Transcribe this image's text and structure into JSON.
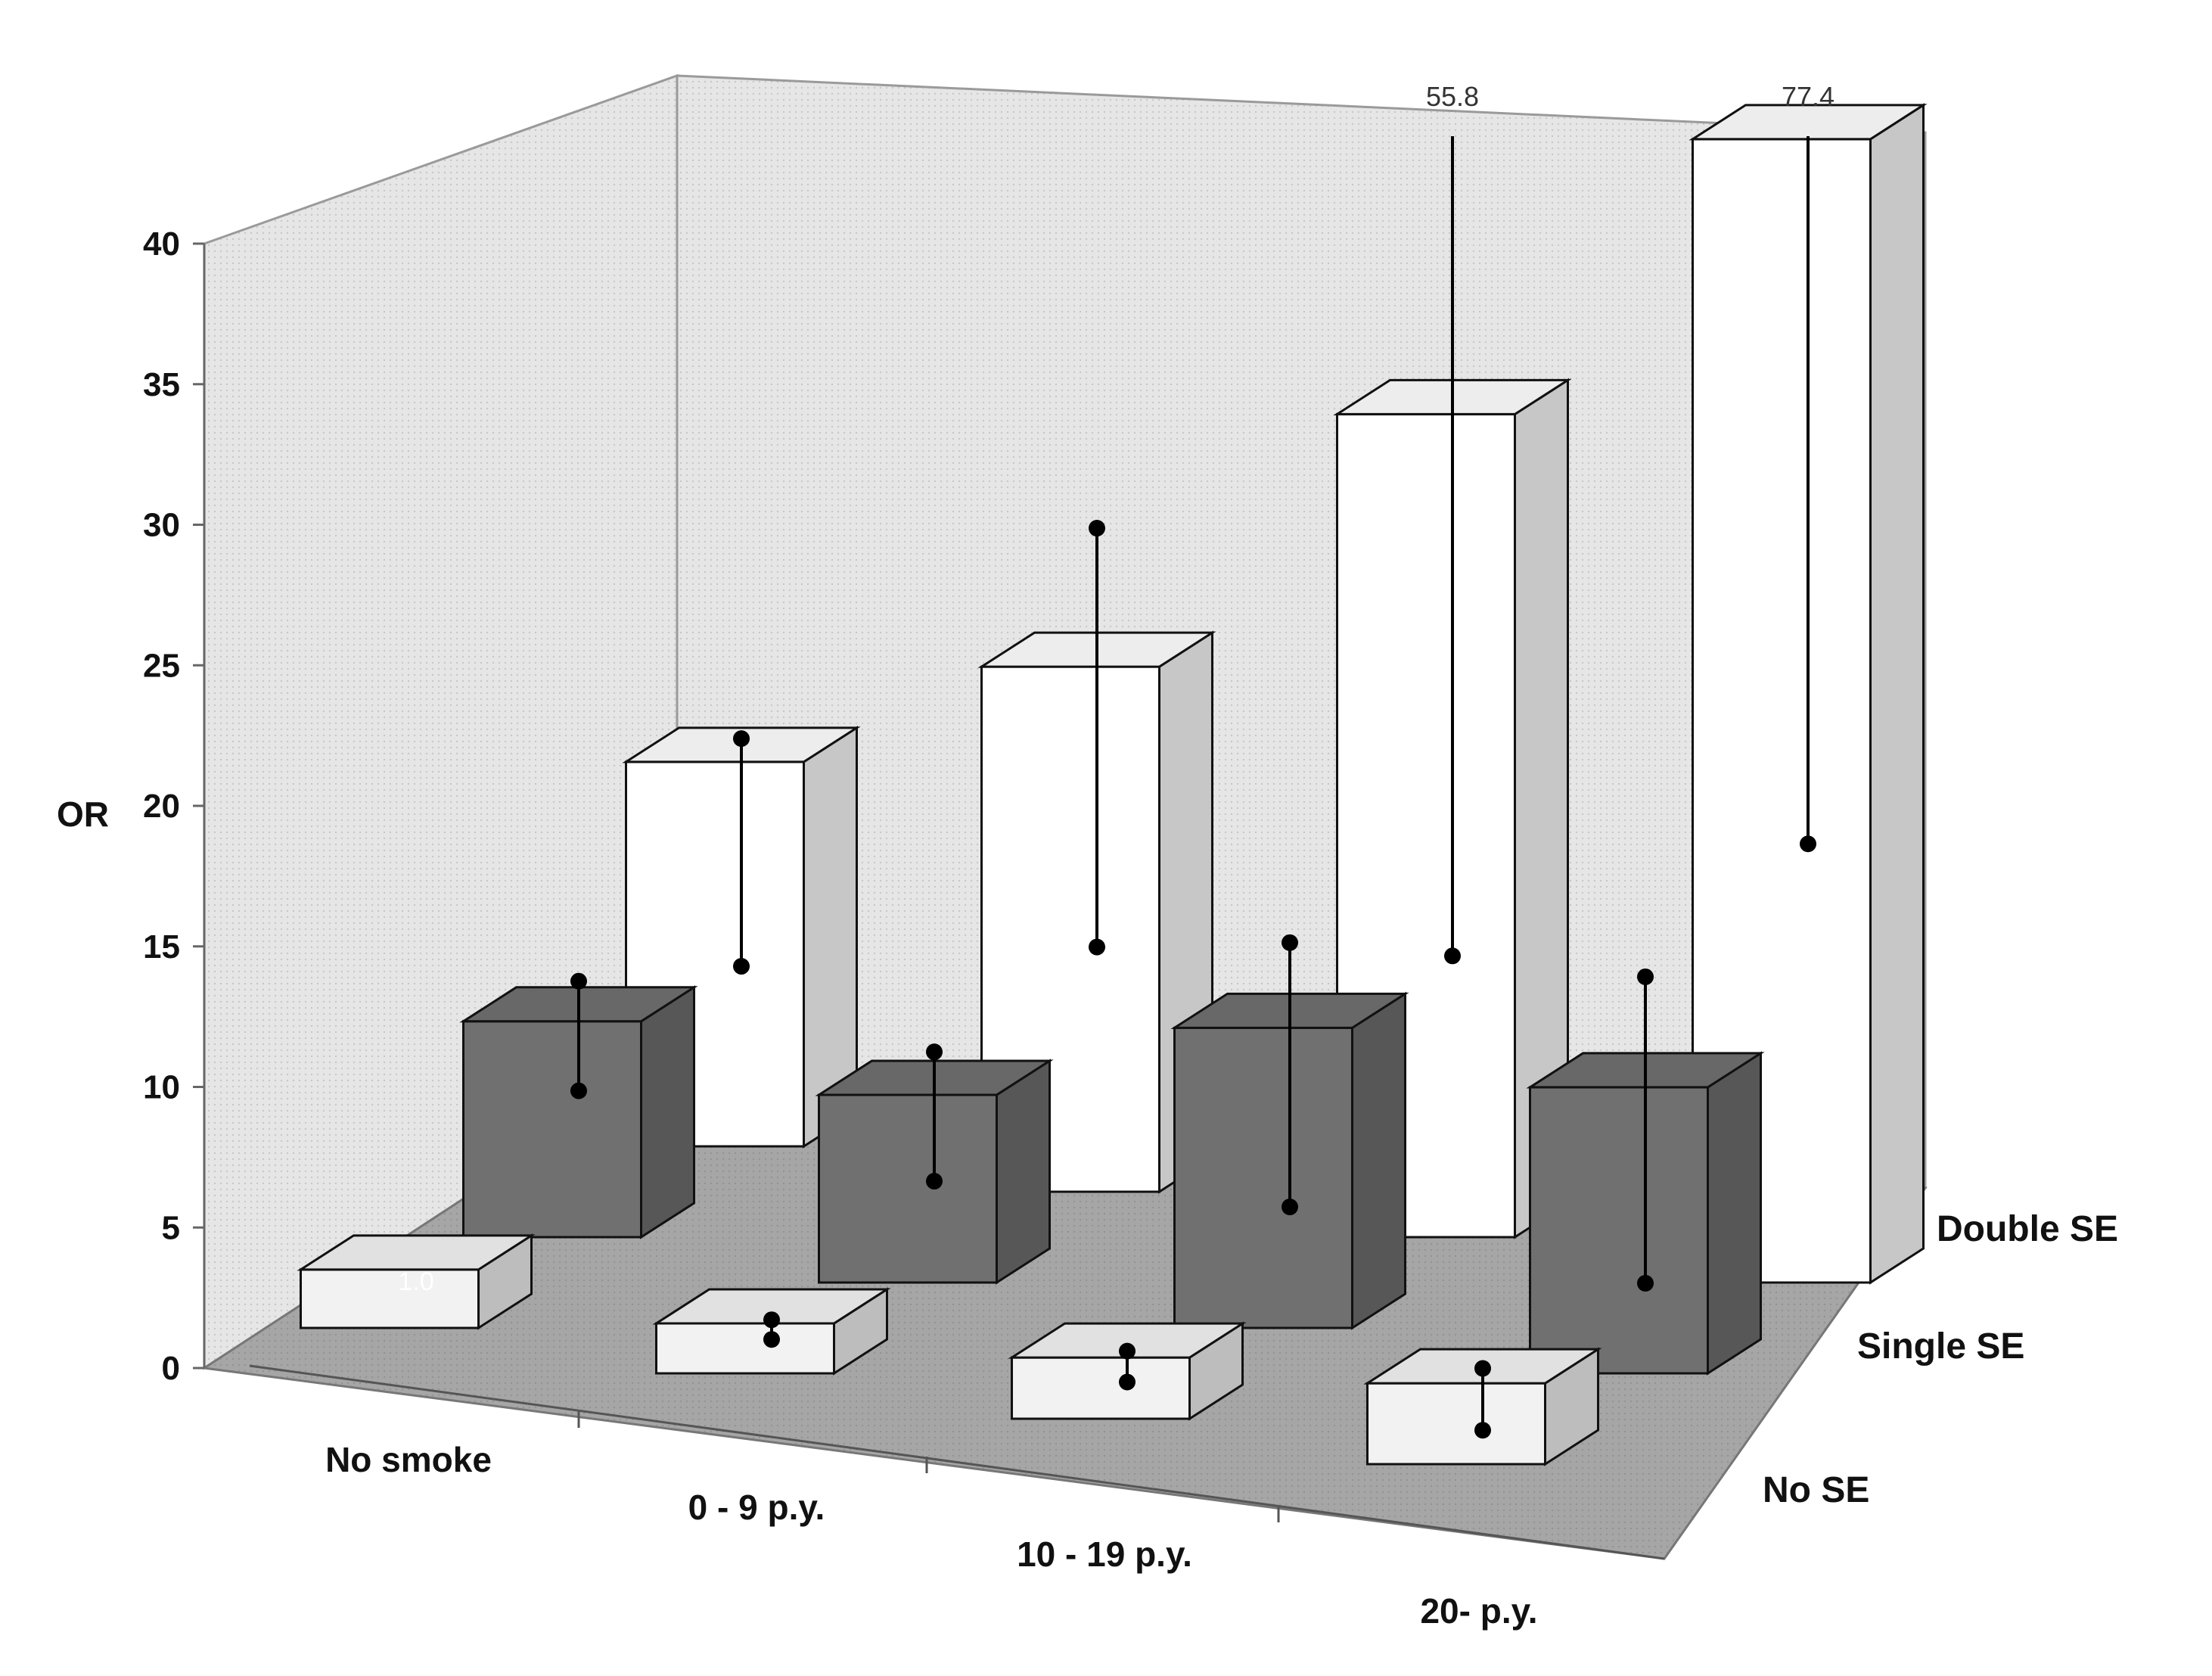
{
  "chart_data": {
    "type": "bar",
    "title": "",
    "ylabel": "OR",
    "ylim": [
      0,
      40
    ],
    "yticks": [
      "0",
      "5",
      "10",
      "15",
      "20",
      "25",
      "30",
      "35",
      "40"
    ],
    "categories": [
      "No smoke",
      "0 - 9 p.y.",
      "10 - 19 p.y.",
      "20- p.y."
    ],
    "series": [
      {
        "name": "No SE",
        "color": "#f2f2f2",
        "values": [
          1.0,
          0.7,
          1.1,
          1.8
        ],
        "ci_low": [
          null,
          0.6,
          0.7,
          0.6
        ],
        "ci_high": [
          null,
          1.3,
          1.8,
          2.8
        ]
      },
      {
        "name": "Single SE",
        "color": "#707070",
        "values": [
          6.6,
          5.6,
          9.6,
          9.1
        ],
        "ci_low": [
          4.6,
          3.0,
          3.7,
          2.6
        ],
        "ci_high": [
          8.5,
          7.6,
          13.1,
          13.5
        ]
      },
      {
        "name": "Double SE",
        "color": "#ffffff",
        "values": [
          12.6,
          17.6,
          28.2,
          39.6
        ],
        "ci_low": [
          5.8,
          8.1,
          9.4,
          15.0
        ],
        "ci_high": [
          13.9,
          23.0,
          55.8,
          77.4
        ]
      }
    ],
    "annotations": [
      {
        "series": "Double SE",
        "category": "10 - 19 p.y.",
        "text": "55.8"
      },
      {
        "series": "Double SE",
        "category": "20- p.y.",
        "text": "77.4"
      },
      {
        "series": "No SE",
        "category": "No smoke",
        "text": "1.0"
      }
    ]
  }
}
